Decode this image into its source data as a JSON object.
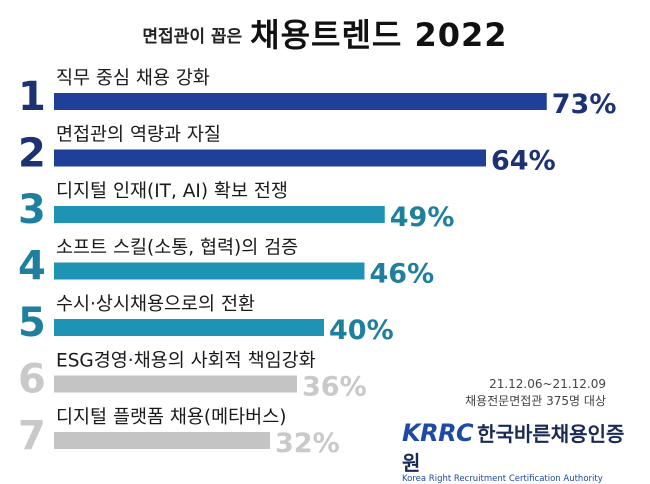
{
  "header": {
    "subtitle": "면접관이 꼽은",
    "title": "채용트렌드 2022"
  },
  "chart_data": {
    "type": "bar",
    "orientation": "horizontal",
    "title": "면접관이 꼽은 채용트렌드 2022",
    "unit": "%",
    "xlim": [
      0,
      100
    ],
    "grid": false,
    "legend": "none",
    "items": [
      {
        "rank": "1",
        "label": "직무 중심 채용 강화",
        "value": 73,
        "value_label": "73%"
      },
      {
        "rank": "2",
        "label": "면접관의 역량과 자질",
        "value": 64,
        "value_label": "64%"
      },
      {
        "rank": "3",
        "label": "디지털 인재(IT, AI) 확보 전쟁",
        "value": 49,
        "value_label": "49%"
      },
      {
        "rank": "4",
        "label": "소프트 스킬(소통, 협력)의 검증",
        "value": 46,
        "value_label": "46%"
      },
      {
        "rank": "5",
        "label": "수시·상시채용으로의 전환",
        "value": 40,
        "value_label": "40%"
      },
      {
        "rank": "6",
        "label": "ESG경영·채용의 사회적 책임강화",
        "value": 36,
        "value_label": "36%"
      },
      {
        "rank": "7",
        "label": "디지털 플랫폼 채용(메타버스)",
        "value": 32,
        "value_label": "32%"
      }
    ],
    "colors": {
      "top2": "#1f3f98",
      "mid3": "#1e93b3",
      "low2": "#c4c4c4",
      "rank_top2": "#1c3272",
      "rank_mid3": "#1f7f9f",
      "rank_low2": "#c9c9c9"
    }
  },
  "footer": {
    "date_range": "21.12.06~21.12.09",
    "survey": "채용전문면접관 375명 대상"
  },
  "logo": {
    "abbr": "KRRC",
    "name": "한국바른채용인증원",
    "english": "Korea Right Recruitment Certification Authority"
  }
}
